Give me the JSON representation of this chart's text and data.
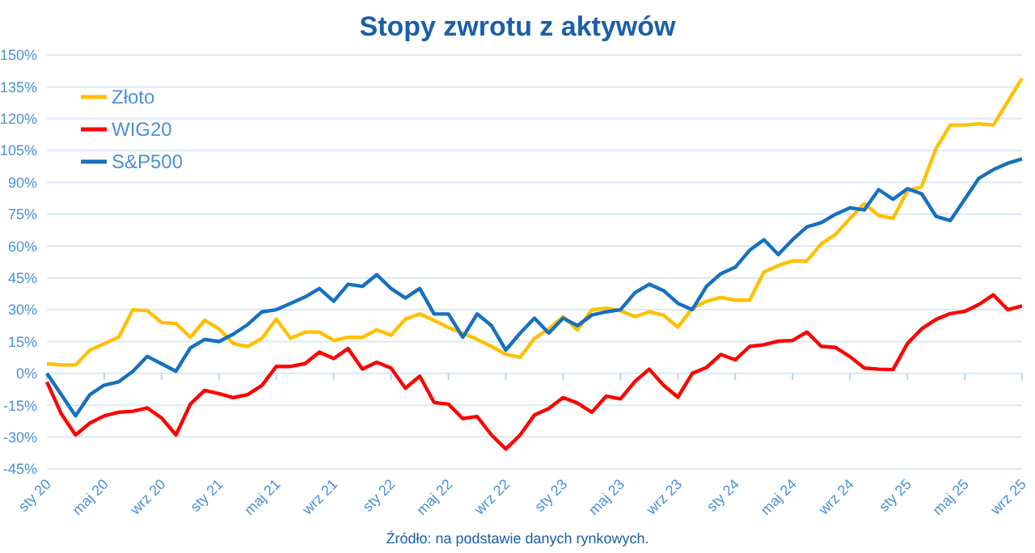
{
  "chart_data": {
    "type": "line",
    "title": "Stopy zwrotu z aktywów",
    "categories": [
      "sty 20",
      null,
      null,
      null,
      "maj 20",
      null,
      null,
      null,
      "wrz 20",
      null,
      null,
      null,
      "sty 21",
      null,
      null,
      null,
      "maj 21",
      null,
      null,
      null,
      "wrz 21",
      null,
      null,
      null,
      "sty 22",
      null,
      null,
      null,
      "maj 22",
      null,
      null,
      null,
      "wrz 22",
      null,
      null,
      null,
      "sty 23",
      null,
      null,
      null,
      "maj 23",
      null,
      null,
      null,
      "wrz 23",
      null,
      null,
      null,
      "sty 24",
      null,
      null,
      null,
      "maj 24",
      null,
      null,
      null,
      "wrz 24",
      null,
      null,
      null,
      "sty 25",
      null,
      null,
      null,
      "maj 25",
      null,
      null,
      null,
      "wrz 25"
    ],
    "series": [
      {
        "name": "Złoto",
        "color": "#ffc000",
        "values": [
          4.5,
          4,
          4,
          11,
          14,
          17,
          30,
          29.5,
          24,
          23.5,
          17,
          25,
          21,
          14,
          12.7,
          16.5,
          25.6,
          16.5,
          19.5,
          19.5,
          15.5,
          17,
          17,
          20.5,
          18,
          25.6,
          28,
          25,
          21.6,
          19,
          16,
          12.7,
          9,
          7.6,
          16.5,
          21,
          26.7,
          20.5,
          30,
          30.7,
          29.5,
          26.7,
          29,
          27.4,
          21.8,
          30.7,
          34,
          35.8,
          34.5,
          34.5,
          47.7,
          50.8,
          53,
          53,
          61,
          65.5,
          73,
          80,
          74.4,
          73,
          86,
          88,
          106,
          117,
          117,
          117.6,
          117,
          128,
          139
        ]
      },
      {
        "name": "WIG20",
        "color": "#ff0000",
        "values": [
          -4,
          -19,
          -29,
          -23.4,
          -20,
          -18.3,
          -17.8,
          -16.3,
          -21,
          -29,
          -14.5,
          -8,
          -9.5,
          -11.4,
          -10,
          -5.6,
          3.3,
          3.3,
          4.6,
          10,
          7,
          11.7,
          2,
          5.3,
          2.5,
          -7,
          -1.3,
          -13.7,
          -14.5,
          -21.3,
          -20.3,
          -29,
          -35.6,
          -29,
          -19.6,
          -16.5,
          -11.4,
          -14,
          -18.3,
          -10.7,
          -12,
          -3.8,
          2,
          -5.6,
          -11.2,
          0,
          2.8,
          8.9,
          6.4,
          12.7,
          13.5,
          15.2,
          15.5,
          19.5,
          12.7,
          12.2,
          7.9,
          2.5,
          2,
          1.8,
          14,
          21,
          25.4,
          28.2,
          29.2,
          32.5,
          37,
          30,
          31.8
        ]
      },
      {
        "name": "S&P500",
        "color": "#1670c0",
        "values": [
          0,
          -10,
          -20,
          -10,
          -5.5,
          -4,
          1,
          8,
          4.5,
          1,
          12,
          16,
          15,
          18.5,
          23,
          29,
          30,
          33,
          36,
          40,
          34,
          42,
          41,
          46.5,
          40,
          35.5,
          40,
          28,
          28,
          17,
          28,
          22.5,
          11,
          19,
          26,
          19,
          26,
          22.5,
          27.5,
          29,
          30,
          38,
          42,
          39,
          33,
          30,
          41,
          47,
          50,
          58,
          63,
          56,
          63,
          69,
          71,
          75,
          78,
          77,
          86.6,
          82,
          87,
          84.6,
          74,
          72,
          82,
          92,
          96,
          99,
          101
        ]
      }
    ],
    "ylim": [
      -45,
      150
    ],
    "yticks": [
      {
        "value": -45,
        "label": "-45%"
      },
      {
        "value": -30,
        "label": "-30%"
      },
      {
        "value": -15,
        "label": "-15%"
      },
      {
        "value": 0,
        "label": "0%"
      },
      {
        "value": 15,
        "label": "15%"
      },
      {
        "value": 30,
        "label": "30%"
      },
      {
        "value": 45,
        "label": "45%"
      },
      {
        "value": 60,
        "label": "60%"
      },
      {
        "value": 75,
        "label": "75%"
      },
      {
        "value": 90,
        "label": "90%"
      },
      {
        "value": 105,
        "label": "105%"
      },
      {
        "value": 120,
        "label": "120%"
      },
      {
        "value": 135,
        "label": "135%"
      },
      {
        "value": 150,
        "label": "150%"
      }
    ],
    "grid": "y",
    "legend": "top left",
    "marker": "none",
    "line_style": "solid",
    "annotations": [
      "Źródło: na podstawie danych rynkowych."
    ]
  }
}
